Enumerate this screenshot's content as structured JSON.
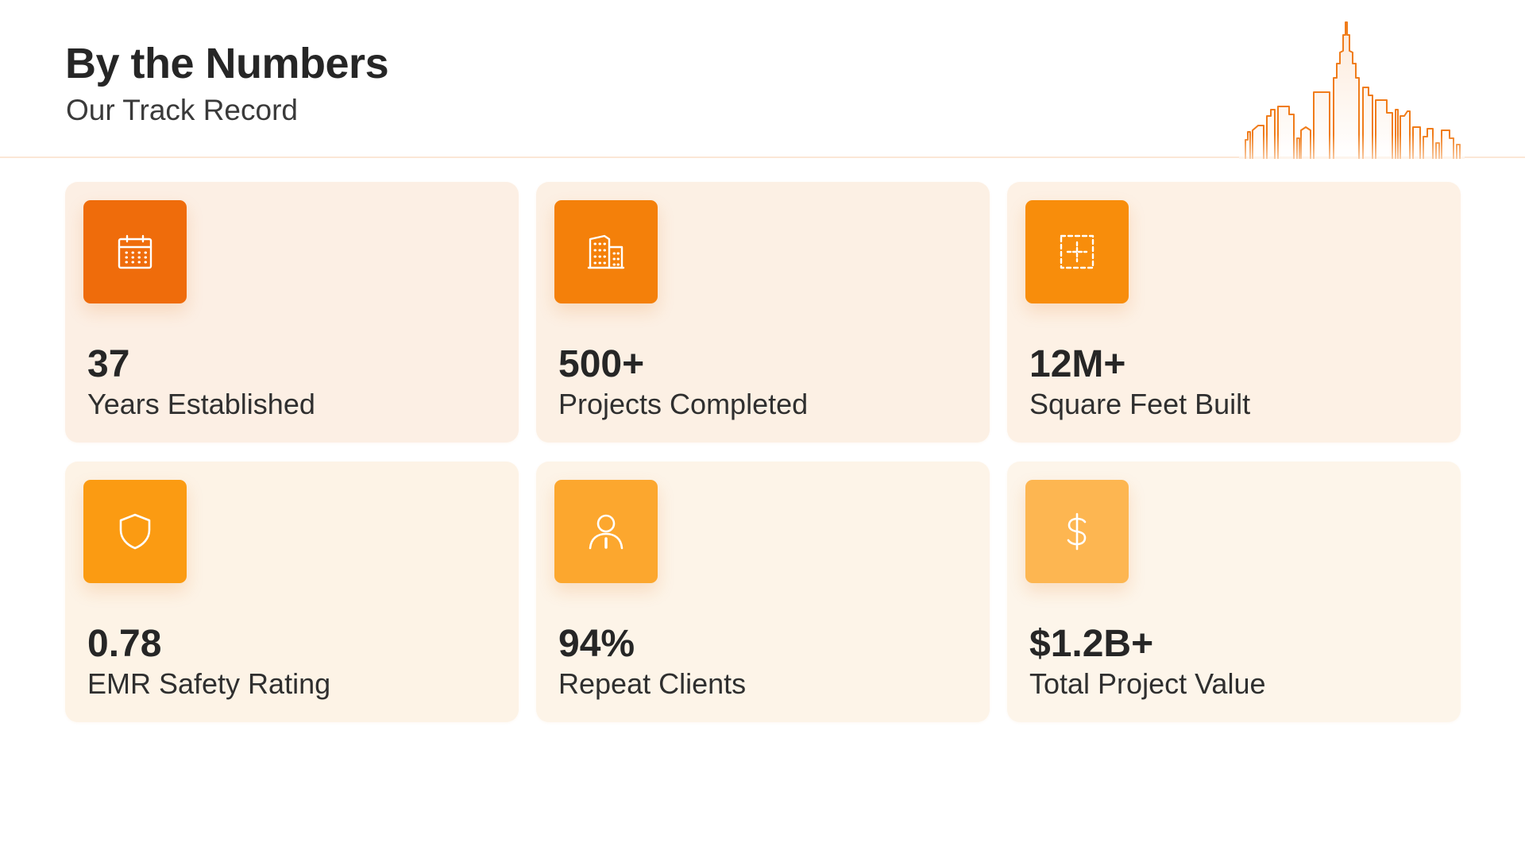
{
  "header": {
    "title": "By the Numbers",
    "subtitle": "Our Track Record",
    "skyline_icon": "city-skyline-outline",
    "accent_color": "#f07c1a",
    "divider_color": "#fbe7d6"
  },
  "stats": [
    {
      "value": "37",
      "label": "Years Established",
      "icon": "calendar-icon",
      "tile_color": "#ef6c0b",
      "card_color": "#fcefe4"
    },
    {
      "value": "500+",
      "label": "Projects Completed",
      "icon": "buildings-icon",
      "tile_color": "#f4800a",
      "card_color": "#fcf0e4"
    },
    {
      "value": "12M+",
      "label": "Square Feet Built",
      "icon": "area-dimensions-icon",
      "tile_color": "#f88d0b",
      "card_color": "#fdf1e5"
    },
    {
      "value": "0.78",
      "label": "EMR Safety Rating",
      "icon": "shield-icon",
      "tile_color": "#fb9b12",
      "card_color": "#fdf3e6"
    },
    {
      "value": "94%",
      "label": "Repeat Clients",
      "icon": "user-icon",
      "tile_color": "#fca72e",
      "card_color": "#fdf4e8"
    },
    {
      "value": "$1.2B+",
      "label": "Total Project Value",
      "icon": "dollar-sign-icon",
      "tile_color": "#fdb651",
      "card_color": "#fdf5ea"
    }
  ]
}
